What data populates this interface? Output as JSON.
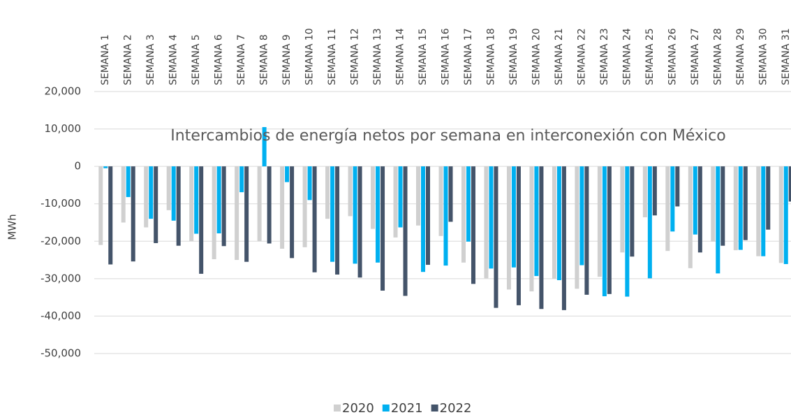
{
  "chart_data": {
    "type": "bar",
    "title": "Intercambios de energía netos por semana en interconexión con México",
    "y_label": "MWh",
    "categories": [
      "SEMANA 1",
      "SEMANA 2",
      "SEMANA 3",
      "SEMANA 4",
      "SEMANA 5",
      "SEMANA 6",
      "SEMANA 7",
      "SEMANA 8",
      "SEMANA 9",
      "SEMANA 10",
      "SEMANA 11",
      "SEMANA 12",
      "SEMANA 13",
      "SEMANA 14",
      "SEMANA 15",
      "SEMANA 16",
      "SEMANA 17",
      "SEMANA 18",
      "SEMANA 19",
      "SEMANA 20",
      "SEMANA 21",
      "SEMANA 22",
      "SEMANA 23",
      "SEMANA 24",
      "SEMANA 25",
      "SEMANA 26",
      "SEMANA 27",
      "SEMANA 28",
      "SEMANA 29",
      "SEMANA 30",
      "SEMANA 31"
    ],
    "series": [
      {
        "name": "2020",
        "color": "#d0d0d0",
        "values": [
          -21000,
          -15000,
          -16300,
          -11700,
          -20000,
          -24800,
          -25000,
          -20000,
          -22000,
          -21600,
          -14000,
          -13300,
          -16700,
          -19000,
          -15800,
          -18600,
          -25700,
          -29900,
          -32900,
          -33400,
          -30000,
          -32700,
          -29500,
          -23000,
          -13600,
          -22600,
          -27200,
          -20100,
          -22400,
          -24000,
          -25800
        ]
      },
      {
        "name": "2021",
        "color": "#00b0f0",
        "values": [
          -500,
          -8200,
          -14000,
          -14500,
          -18000,
          -17900,
          -6900,
          10500,
          -4200,
          -9000,
          -25500,
          -26000,
          -25700,
          -16300,
          -28200,
          -26500,
          -20100,
          -27300,
          -27000,
          -29300,
          -30400,
          -26400,
          -34700,
          -34800,
          -29900,
          -17400,
          -18200,
          -28600,
          -22300,
          -24000,
          -26100
        ]
      },
      {
        "name": "2022",
        "color": "#44546a",
        "values": [
          -26200,
          -25400,
          -20500,
          -21200,
          -28700,
          -21300,
          -25500,
          -20600,
          -24500,
          -28300,
          -28900,
          -29700,
          -33200,
          -34600,
          -26300,
          -14800,
          -31400,
          -37800,
          -37100,
          -38100,
          -38400,
          -34300,
          -34100,
          -24100,
          -13100,
          -10700,
          -23000,
          -21200,
          -19700,
          -16900,
          -9400
        ]
      }
    ],
    "ylim": [
      -50000,
      20000
    ],
    "yticks": [
      {
        "value": 20000,
        "label": "20,000"
      },
      {
        "value": 10000,
        "label": "10,000"
      },
      0,
      {
        "value": -10000,
        "label": "-10,000"
      },
      {
        "value": -20000,
        "label": "-20,000"
      },
      {
        "value": -30000,
        "label": "-30,000"
      },
      {
        "value": -40000,
        "label": "-40,000"
      },
      {
        "value": -50000,
        "label": "-50,000"
      }
    ],
    "grid": true
  }
}
